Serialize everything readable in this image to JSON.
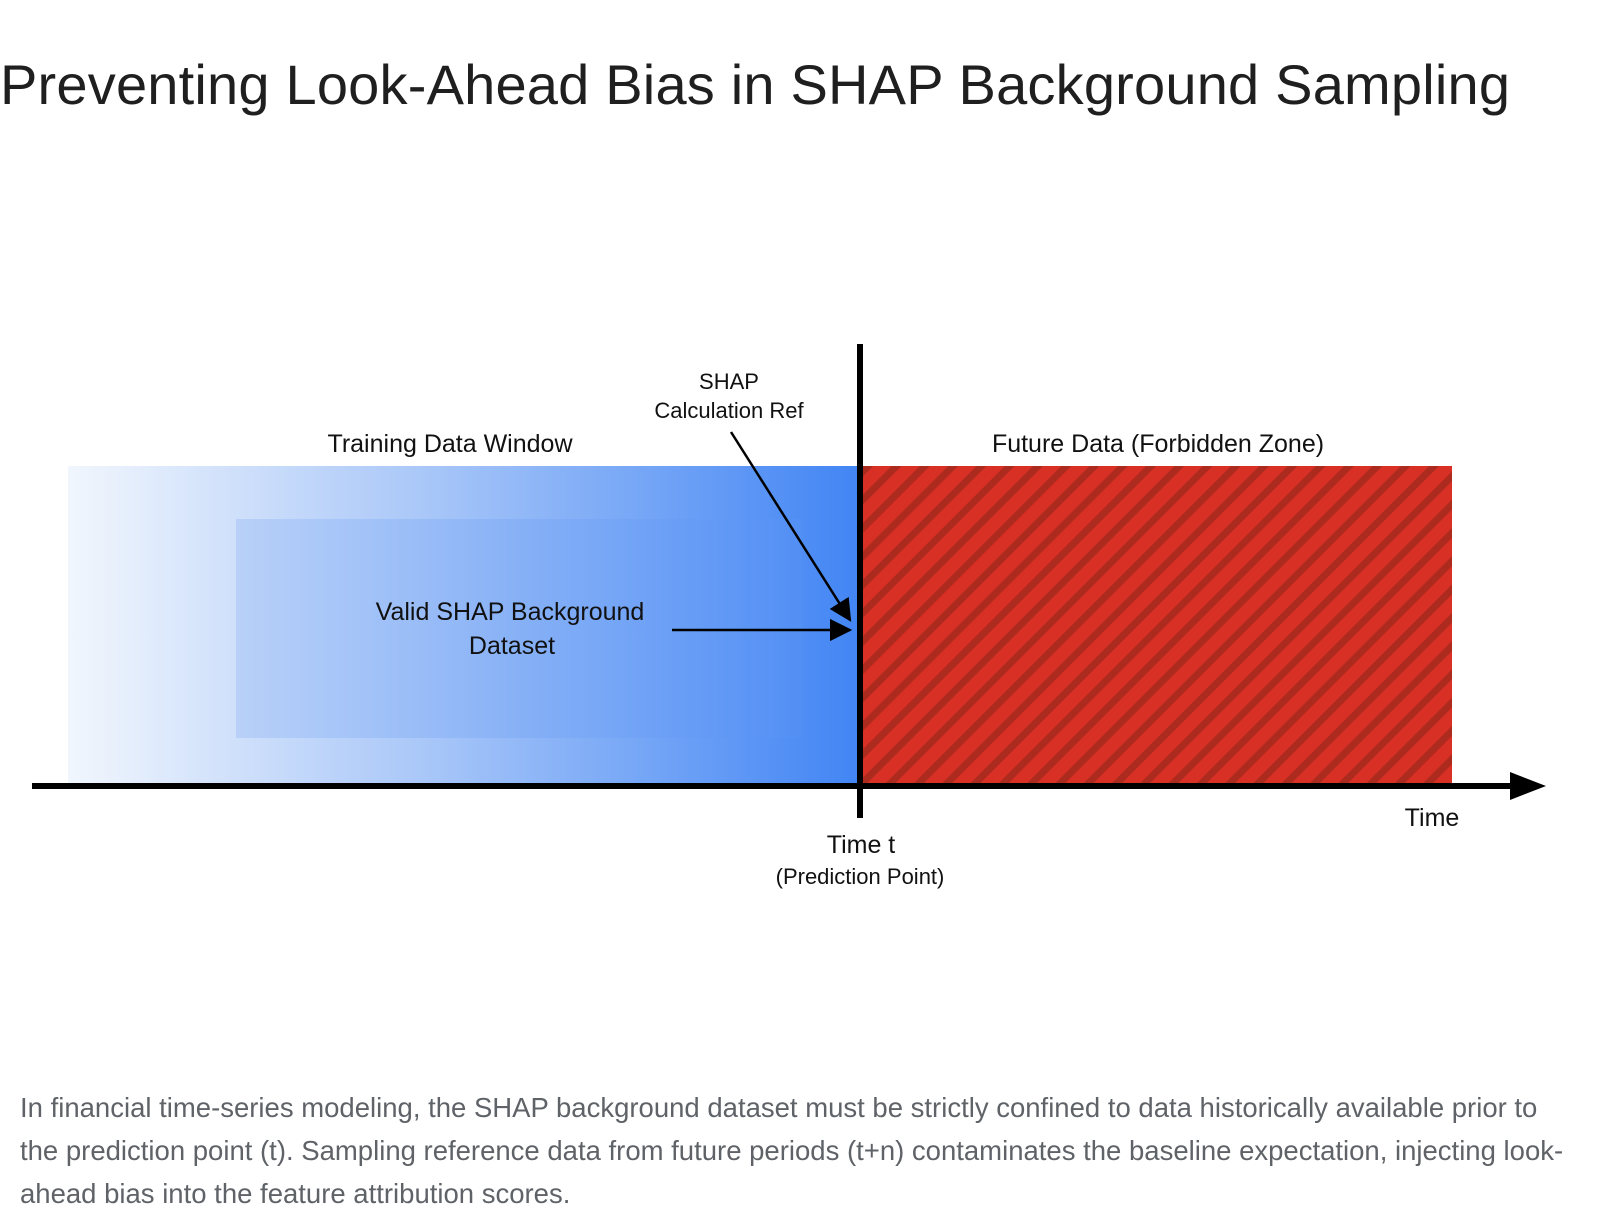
{
  "title": "Preventing Look-Ahead Bias in SHAP Background Sampling",
  "diagram": {
    "labels": {
      "training_window": "Training Data Window",
      "future_zone": "Future Data (Forbidden Zone)",
      "shap_ref_line1": "SHAP",
      "shap_ref_line2": "Calculation Ref",
      "background_line1": "Valid SHAP Background",
      "background_line2": "Dataset",
      "time_t": "Time t",
      "prediction_point": "(Prediction Point)",
      "axis": "Time"
    },
    "colors": {
      "training_start": "#f1f6fd",
      "training_end": "#4285f4",
      "forbidden": "#d93025",
      "forbidden_stripe": "#a8261c",
      "axis": "#000000",
      "caption": "#5f6368"
    }
  },
  "caption": "In financial time-series modeling, the SHAP background dataset must be strictly confined to data historically available prior to the prediction point (t). Sampling reference data from future periods (t+n) contaminates the baseline expectation, injecting look-ahead bias into the feature attribution scores."
}
